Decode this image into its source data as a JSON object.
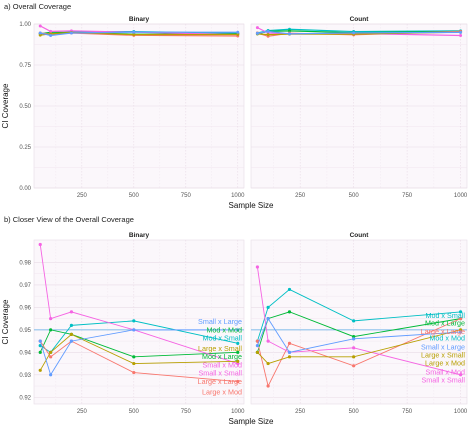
{
  "chart_data": [
    {
      "type": "line",
      "title": "a) Overall Coverage",
      "xlabel": "Sample Size",
      "ylabel": "CI Coverage",
      "ylim": [
        0,
        1
      ],
      "yticks": [
        "0.00",
        "0.25",
        "0.50",
        "0.75",
        "1.00"
      ],
      "xticks": [
        "250",
        "500",
        "750",
        "1000"
      ],
      "xlim": [
        20,
        1030
      ],
      "grid": true,
      "panels": [
        {
          "strip": "Binary",
          "series": [
            {
              "color": "#00BFC4",
              "values": [
                0.943,
                0.94,
                0.952,
                0.954,
                0.944
              ]
            },
            {
              "color": "#00BA38",
              "values": [
                0.94,
                0.95,
                0.948,
                0.938,
                0.94
              ]
            },
            {
              "color": "#F8766D",
              "values": [
                0.945,
                0.938,
                0.945,
                0.931,
                0.927
              ]
            },
            {
              "color": "#F564E3",
              "values": [
                0.988,
                0.955,
                0.958,
                0.95,
                0.935
              ]
            },
            {
              "color": "#B79F00",
              "values": [
                0.932,
                0.94,
                0.948,
                0.935,
                0.936
              ]
            },
            {
              "color": "#619CFF",
              "values": [
                0.945,
                0.93,
                0.945,
                0.95,
                0.95
              ]
            }
          ]
        },
        {
          "strip": "Count",
          "series": [
            {
              "color": "#00BFC4",
              "values": [
                0.945,
                0.96,
                0.968,
                0.954,
                0.958
              ]
            },
            {
              "color": "#00BA38",
              "values": [
                0.94,
                0.955,
                0.958,
                0.947,
                0.955
              ]
            },
            {
              "color": "#F8766D",
              "values": [
                0.945,
                0.925,
                0.944,
                0.934,
                0.955
              ]
            },
            {
              "color": "#F564E3",
              "values": [
                0.978,
                0.945,
                0.94,
                0.942,
                0.93
              ]
            },
            {
              "color": "#B79F00",
              "values": [
                0.94,
                0.935,
                0.938,
                0.938,
                0.95
              ]
            },
            {
              "color": "#619CFF",
              "values": [
                0.943,
                0.955,
                0.94,
                0.946,
                0.949
              ]
            }
          ]
        }
      ]
    },
    {
      "type": "line",
      "title": "b) Closer View of the Overall Coverage",
      "xlabel": "Sample Size",
      "ylabel": "CI Coverage",
      "ylim": [
        0.917,
        0.99
      ],
      "yticks": [
        "0.92",
        "0.93",
        "0.94",
        "0.95",
        "0.96",
        "0.97",
        "0.98"
      ],
      "xticks": [
        "250",
        "500",
        "750",
        "1000"
      ],
      "xlim": [
        20,
        1030
      ],
      "reference_line": 0.95,
      "grid": true,
      "panels": [
        {
          "strip": "Binary",
          "series": [
            {
              "name": "Small x Large",
              "color": "#00BFC4",
              "x": [
                50,
                100,
                200,
                500,
                1000
              ],
              "values": [
                0.943,
                0.94,
                0.952,
                0.954,
                0.944
              ]
            },
            {
              "name": "Mod x Mod",
              "color": "#00BA38",
              "x": [
                50,
                100,
                200,
                500,
                1000
              ],
              "values": [
                0.94,
                0.95,
                0.948,
                0.938,
                0.94
              ]
            },
            {
              "name": "Large x Mod",
              "color": "#F8766D",
              "x": [
                50,
                100,
                200,
                500,
                1000
              ],
              "values": [
                0.945,
                0.938,
                0.945,
                0.931,
                0.927
              ]
            },
            {
              "name": "Small x Small",
              "color": "#F564E3",
              "x": [
                50,
                100,
                200,
                500,
                1000
              ],
              "values": [
                0.988,
                0.955,
                0.958,
                0.95,
                0.935
              ]
            },
            {
              "name": "Large x Small",
              "color": "#B79F00",
              "x": [
                50,
                100,
                200,
                500,
                1000
              ],
              "values": [
                0.932,
                0.94,
                0.948,
                0.935,
                0.936
              ]
            },
            {
              "name": "Small x Mod",
              "color": "#619CFF",
              "x": [
                50,
                100,
                200,
                500,
                1000
              ],
              "values": [
                0.945,
                0.93,
                0.945,
                0.95,
                0.95
              ]
            }
          ],
          "labels": [
            {
              "text": "Small x Large",
              "color": "#619CFF",
              "y": 0.9537
            },
            {
              "text": "Mod x Mod",
              "color": "#00BA38",
              "y": 0.95
            },
            {
              "text": "Mod x Small",
              "color": "#00BFC4",
              "y": 0.9463
            },
            {
              "text": "Large x Small",
              "color": "#B79F00",
              "y": 0.9418
            },
            {
              "text": "Mod x Large",
              "color": "#00BA38",
              "y": 0.9381
            },
            {
              "text": "Small x Mod",
              "color": "#F564E3",
              "y": 0.9344
            },
            {
              "text": "Small x Small",
              "color": "#F564E3",
              "y": 0.9307
            },
            {
              "text": "Large x Large",
              "color": "#F8766D",
              "y": 0.927
            },
            {
              "text": "Large x Mod",
              "color": "#F8766D",
              "y": 0.9224
            }
          ]
        },
        {
          "strip": "Count",
          "series": [
            {
              "name": "Mod x Small",
              "color": "#00BFC4",
              "x": [
                50,
                100,
                200,
                500,
                1000
              ],
              "values": [
                0.945,
                0.96,
                0.968,
                0.954,
                0.958
              ]
            },
            {
              "name": "Mod x Large",
              "color": "#00BA38",
              "x": [
                50,
                100,
                200,
                500,
                1000
              ],
              "values": [
                0.94,
                0.955,
                0.958,
                0.947,
                0.955
              ]
            },
            {
              "name": "Large x Large",
              "color": "#F8766D",
              "x": [
                50,
                100,
                200,
                500,
                1000
              ],
              "values": [
                0.945,
                0.925,
                0.944,
                0.934,
                0.955
              ]
            },
            {
              "name": "Small x Small",
              "color": "#F564E3",
              "x": [
                50,
                100,
                200,
                500,
                1000
              ],
              "values": [
                0.978,
                0.945,
                0.94,
                0.942,
                0.93
              ]
            },
            {
              "name": "Large x Mod",
              "color": "#B79F00",
              "x": [
                50,
                100,
                200,
                500,
                1000
              ],
              "values": [
                0.94,
                0.935,
                0.938,
                0.938,
                0.95
              ]
            },
            {
              "name": "Small x Large",
              "color": "#619CFF",
              "x": [
                50,
                100,
                200,
                500,
                1000
              ],
              "values": [
                0.943,
                0.955,
                0.94,
                0.946,
                0.949
              ]
            }
          ],
          "labels": [
            {
              "text": "Mod x Small",
              "color": "#00BFC4",
              "y": 0.9563
            },
            {
              "text": "Mod x Large",
              "color": "#00BA38",
              "y": 0.953
            },
            {
              "text": "Large x Large",
              "color": "#F8766D",
              "y": 0.9492
            },
            {
              "text": "Mod x Mod",
              "color": "#00BFC4",
              "y": 0.9463
            },
            {
              "text": "Small x Large",
              "color": "#619CFF",
              "y": 0.9424
            },
            {
              "text": "Large x Small",
              "color": "#B79F00",
              "y": 0.9387
            },
            {
              "text": "Large x Mod",
              "color": "#B79F00",
              "y": 0.9352
            },
            {
              "text": "Small x Mod",
              "color": "#F564E3",
              "y": 0.9313
            },
            {
              "text": "Small x Small",
              "color": "#F564E3",
              "y": 0.9276
            }
          ]
        }
      ]
    }
  ]
}
